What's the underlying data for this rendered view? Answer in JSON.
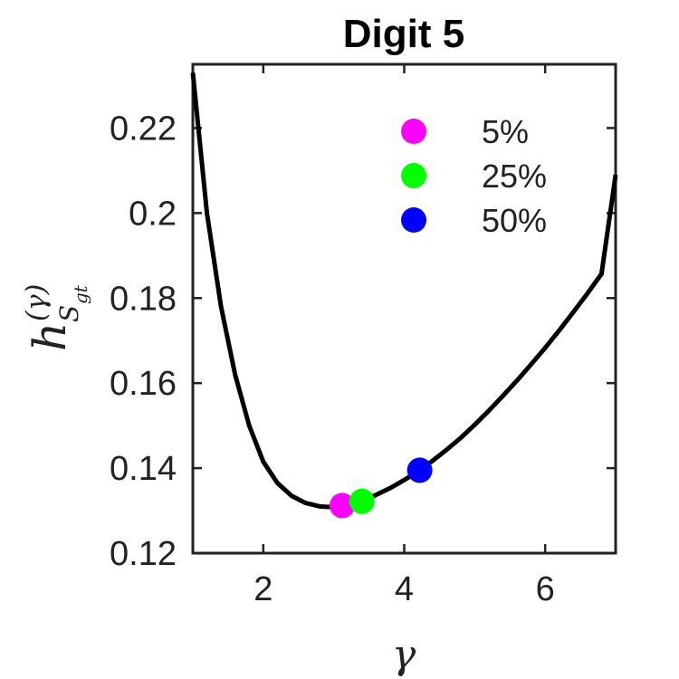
{
  "chart_data": {
    "type": "line",
    "title": "Digit 5",
    "xlabel": "γ",
    "ylabel": {
      "main": "h",
      "superscript": "(γ)",
      "subscript": "S",
      "sub_subscript": "gt"
    },
    "xlim": [
      1,
      7
    ],
    "ylim": [
      0.12,
      0.235
    ],
    "xticks": [
      2,
      4,
      6
    ],
    "xtick_labels": [
      "2",
      "4",
      "6"
    ],
    "yticks": [
      0.12,
      0.14,
      0.16,
      0.18,
      0.2,
      0.22
    ],
    "ytick_labels": [
      "0.12",
      "0.14",
      "0.16",
      "0.18",
      "0.2",
      "0.22"
    ],
    "grid": false,
    "legend_position": "top-right",
    "series": [
      {
        "color": "#000000",
        "x": [
          1.0,
          1.2,
          1.4,
          1.6,
          1.8,
          2.0,
          2.2,
          2.4,
          2.6,
          2.8,
          3.0,
          3.2,
          3.4,
          3.6,
          3.8,
          4.0,
          4.2,
          4.4,
          4.6,
          4.8,
          5.0,
          5.2,
          5.4,
          5.6,
          5.8,
          6.0,
          6.2,
          6.4,
          6.6,
          6.8,
          7.0
        ],
        "y": [
          0.233,
          0.2,
          0.178,
          0.162,
          0.15,
          0.1415,
          0.1365,
          0.1335,
          0.1318,
          0.131,
          0.1308,
          0.1313,
          0.1322,
          0.1337,
          0.1353,
          0.1372,
          0.1393,
          0.1417,
          0.1443,
          0.1471,
          0.1502,
          0.1535,
          0.157,
          0.1606,
          0.1644,
          0.1683,
          0.1724,
          0.1767,
          0.1811,
          0.1857,
          0.209
        ]
      }
    ],
    "markers": [
      {
        "label": "5%",
        "x": 3.12,
        "y": 0.1312,
        "color": "#ff00ff"
      },
      {
        "label": "25%",
        "x": 3.4,
        "y": 0.1322,
        "color": "#00ff00"
      },
      {
        "label": "50%",
        "x": 4.22,
        "y": 0.1395,
        "color": "#0000ff"
      }
    ]
  }
}
